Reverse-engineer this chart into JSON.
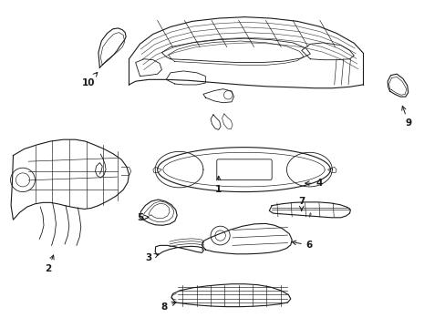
{
  "background_color": "#ffffff",
  "line_color": "#1a1a1a",
  "fig_width": 4.89,
  "fig_height": 3.6,
  "dpi": 100,
  "label_fontsize": 7.5,
  "label_positions": {
    "1": {
      "xt": 0.49,
      "yt": 0.415,
      "xa": 0.49,
      "ya": 0.455
    },
    "2": {
      "xt": 0.1,
      "yt": 0.23,
      "xa": 0.115,
      "ya": 0.27
    },
    "3": {
      "xt": 0.33,
      "yt": 0.255,
      "xa": 0.36,
      "ya": 0.268
    },
    "4": {
      "xt": 0.72,
      "yt": 0.43,
      "xa": 0.68,
      "ya": 0.43
    },
    "5": {
      "xt": 0.31,
      "yt": 0.35,
      "xa": 0.338,
      "ya": 0.352
    },
    "6": {
      "xt": 0.698,
      "yt": 0.285,
      "xa": 0.65,
      "ya": 0.295
    },
    "7": {
      "xt": 0.68,
      "yt": 0.388,
      "xa": 0.68,
      "ya": 0.365
    },
    "8": {
      "xt": 0.365,
      "yt": 0.142,
      "xa": 0.4,
      "ya": 0.155
    },
    "9": {
      "xt": 0.925,
      "yt": 0.57,
      "xa": 0.908,
      "ya": 0.618
    },
    "10": {
      "xt": 0.192,
      "yt": 0.665,
      "xa": 0.218,
      "ya": 0.695
    }
  }
}
